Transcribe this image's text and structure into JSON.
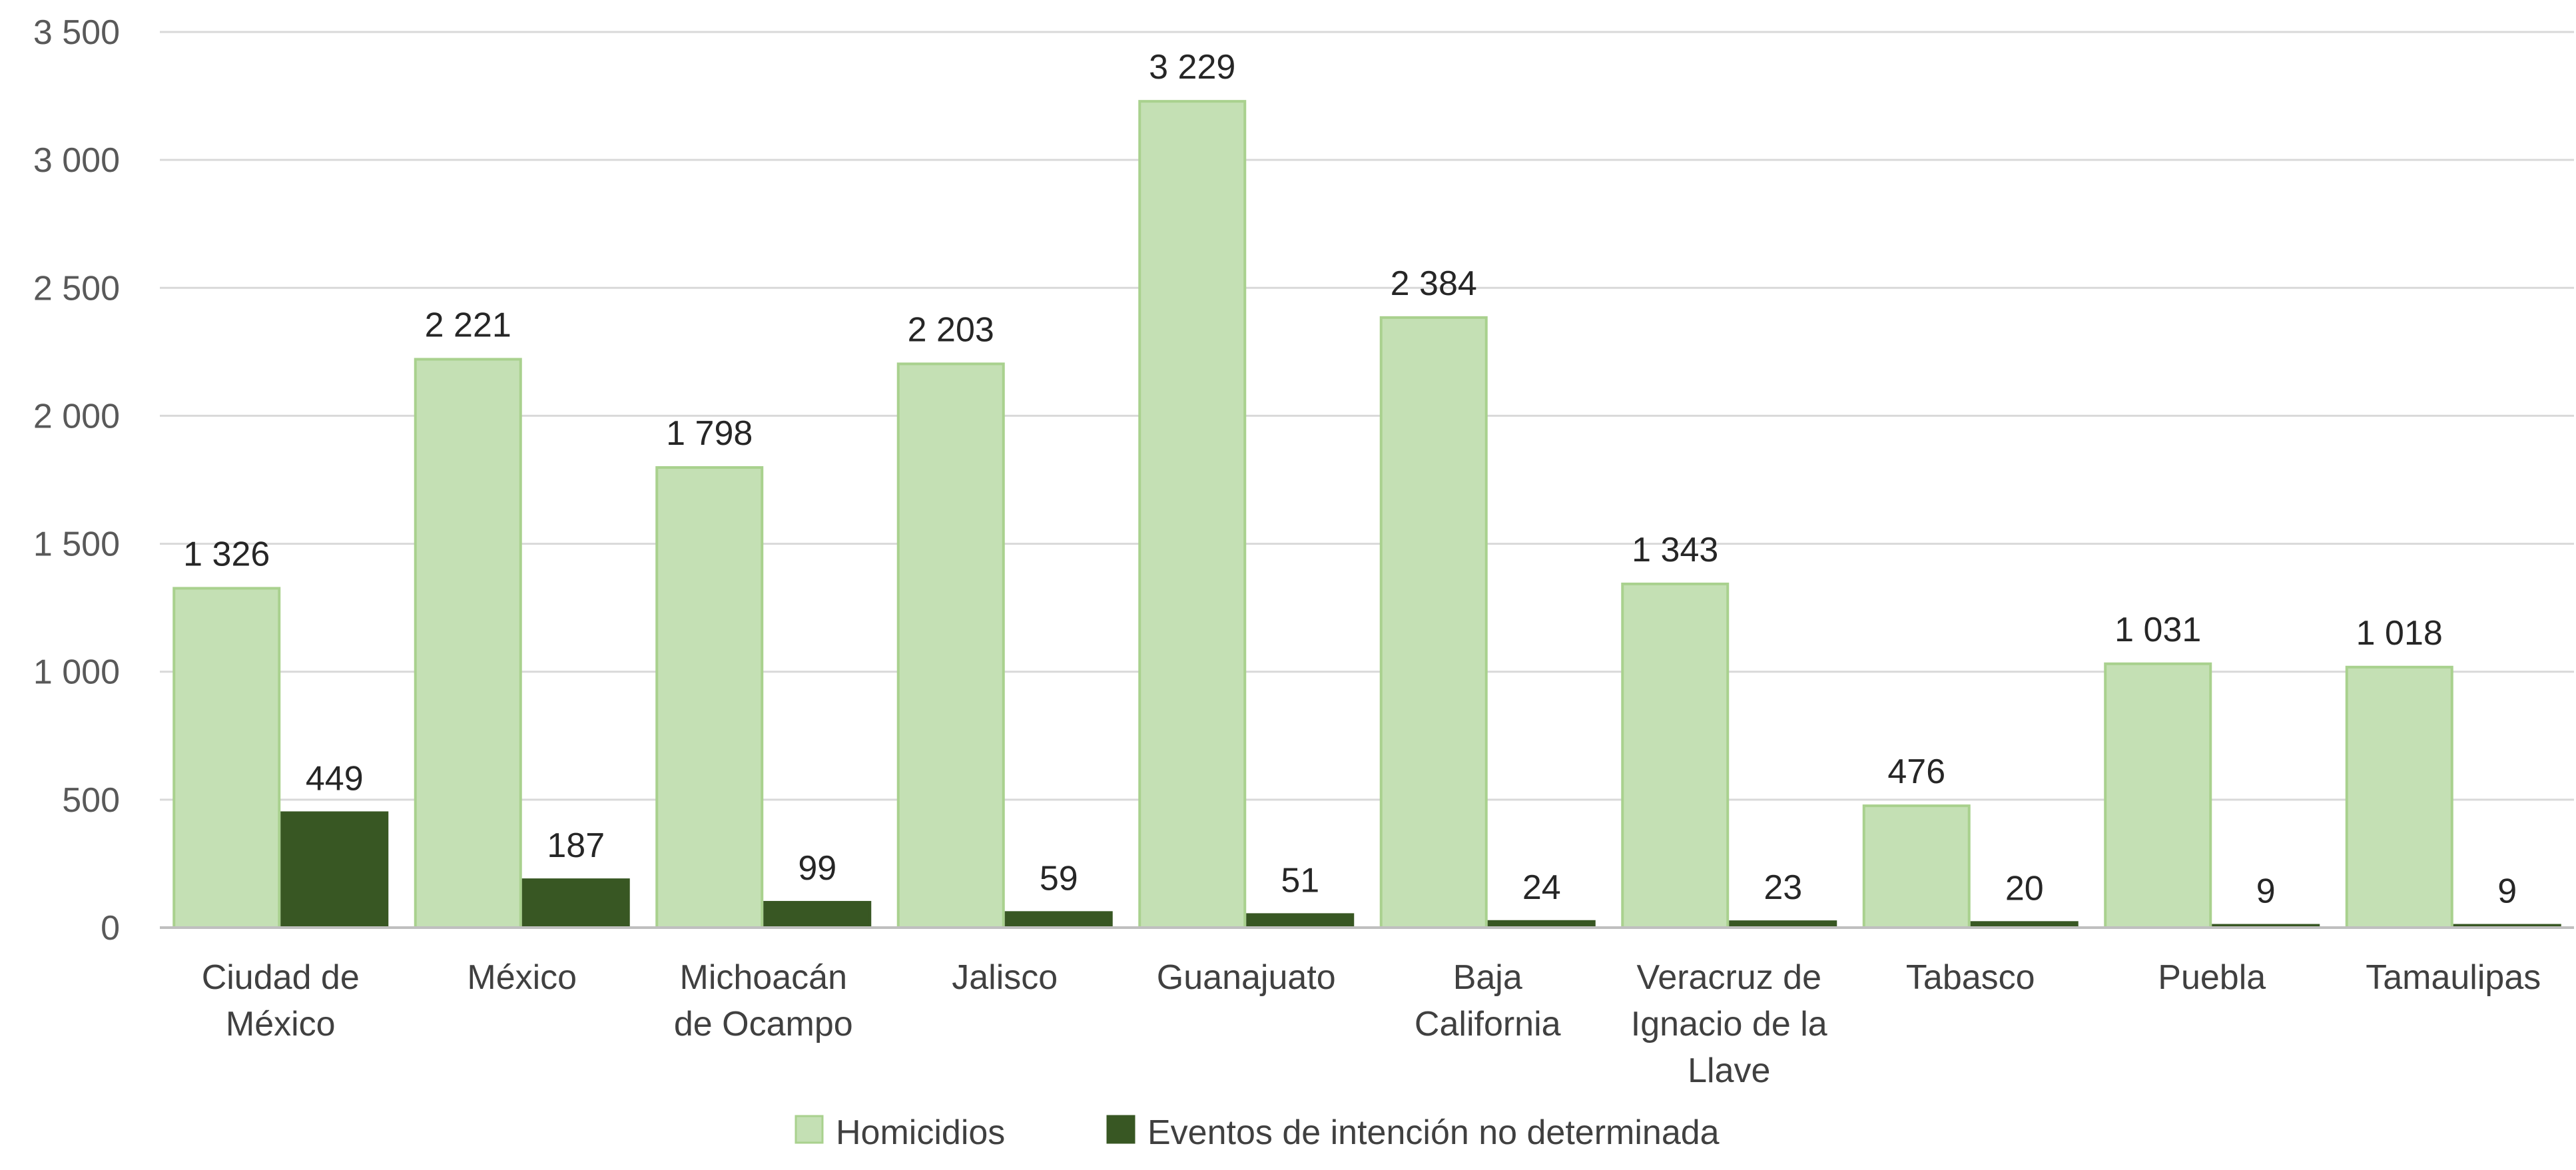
{
  "chart_data": {
    "type": "bar",
    "categories": [
      [
        "Ciudad de",
        "México"
      ],
      [
        "México"
      ],
      [
        "Michoacán",
        "de Ocampo"
      ],
      [
        "Jalisco"
      ],
      [
        "Guanajuato"
      ],
      [
        "Baja",
        "California"
      ],
      [
        "Veracruz de",
        "Ignacio de la",
        "Llave"
      ],
      [
        "Tabasco"
      ],
      [
        "Puebla"
      ],
      [
        "Tamaulipas"
      ]
    ],
    "series": [
      {
        "name": "Homicidios",
        "values": [
          1326,
          2221,
          1798,
          2203,
          3229,
          2384,
          1343,
          476,
          1031,
          1018
        ],
        "labels": [
          "1 326",
          "2 221",
          "1 798",
          "2 203",
          "3 229",
          "2 384",
          "1 343",
          "476",
          "1 031",
          "1 018"
        ],
        "color": "#c4e0b4",
        "stroke": "#a9d18e"
      },
      {
        "name": "Eventos de intención no determinada",
        "values": [
          449,
          187,
          99,
          59,
          51,
          24,
          23,
          20,
          9,
          9
        ],
        "labels": [
          "449",
          "187",
          "99",
          "59",
          "51",
          "24",
          "23",
          "20",
          "9",
          "9"
        ],
        "color": "#385723",
        "stroke": "#385723"
      }
    ],
    "yticks": [
      {
        "value": 0,
        "label": "0"
      },
      {
        "value": 500,
        "label": "500"
      },
      {
        "value": 1000,
        "label": "1 000"
      },
      {
        "value": 1500,
        "label": "1 500"
      },
      {
        "value": 2000,
        "label": "2 000"
      },
      {
        "value": 2500,
        "label": "2 500"
      },
      {
        "value": 3000,
        "label": "3 000"
      },
      {
        "value": 3500,
        "label": "3 500"
      }
    ],
    "ylim": [
      0,
      3500
    ],
    "grid": true,
    "legend_position": "bottom",
    "gridline_color": "#d9d9d9",
    "axis_color": "#bfbfbf"
  }
}
